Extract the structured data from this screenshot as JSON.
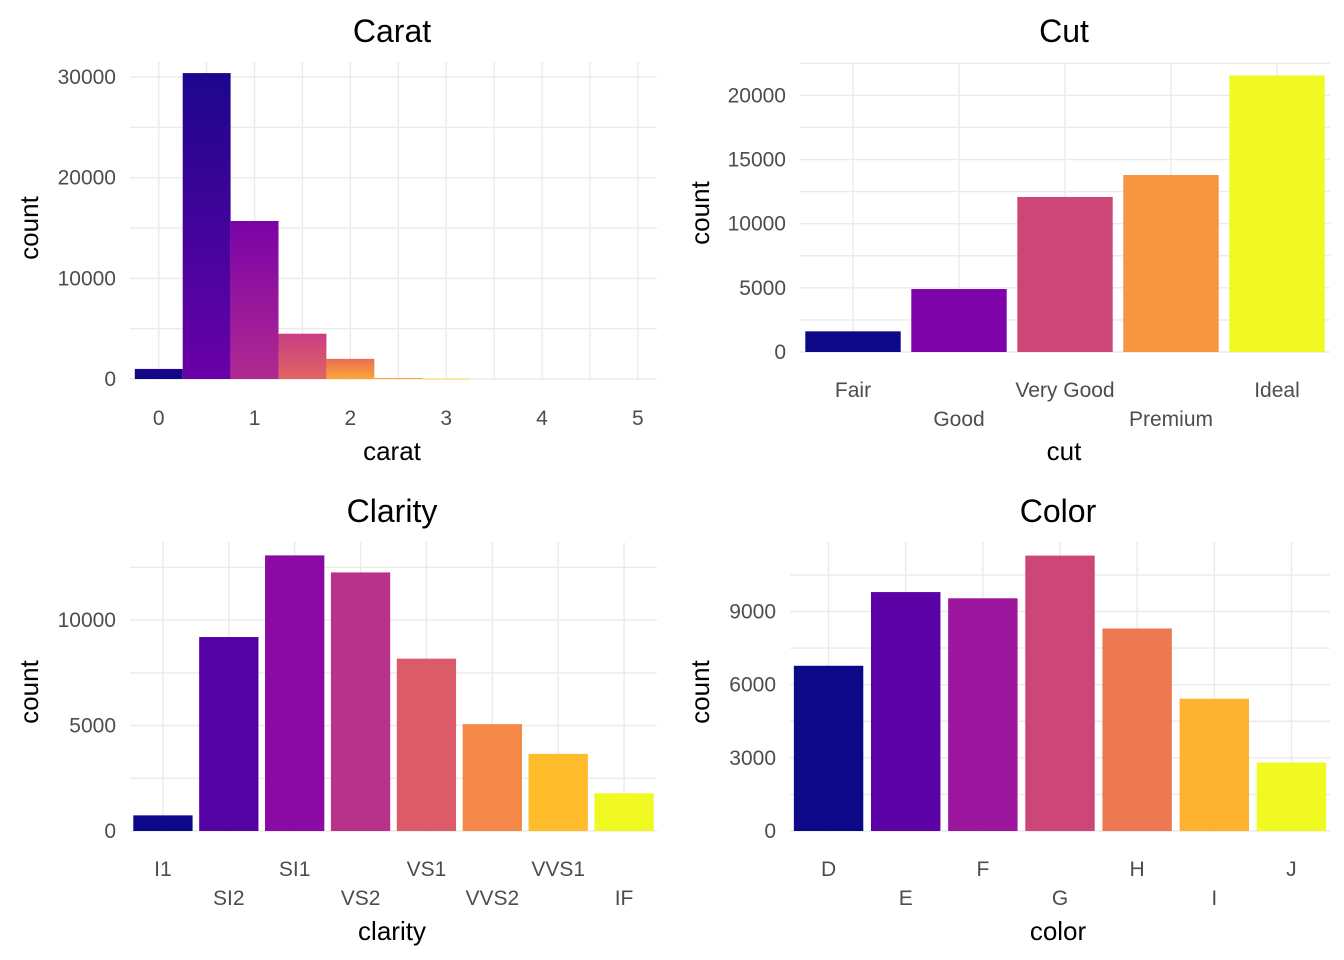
{
  "chart_data": [
    {
      "id": "carat",
      "type": "bar",
      "subtype": "histogram",
      "title": "Carat",
      "xlabel": "carat",
      "ylabel": "count",
      "x_ticks": [
        "0",
        "1",
        "2",
        "3",
        "4",
        "5"
      ],
      "y_ticks": [
        "0",
        "10000",
        "20000",
        "30000"
      ],
      "xlim": [
        -0.3,
        5.2
      ],
      "ylim": [
        0,
        31500
      ],
      "grid": true,
      "bins": [
        {
          "x0": -0.25,
          "x1": 0.25,
          "value": 1000,
          "color_from": "#0d0887",
          "color_to": "#1a068c"
        },
        {
          "x0": 0.25,
          "x1": 0.75,
          "value": 30400,
          "color_from": "#6a00a8",
          "color_to": "#1c068d"
        },
        {
          "x0": 0.75,
          "x1": 1.25,
          "value": 15700,
          "color_from": "#b12a90",
          "color_to": "#7a02a8"
        },
        {
          "x0": 1.25,
          "x1": 1.75,
          "value": 4500,
          "color_from": "#e16462",
          "color_to": "#c73e83"
        },
        {
          "x0": 1.75,
          "x1": 2.25,
          "value": 2000,
          "color_from": "#fca636",
          "color_to": "#ea6d58"
        },
        {
          "x0": 2.25,
          "x1": 2.75,
          "value": 100,
          "color_from": "#fdb92f",
          "color_to": "#fb9b38"
        },
        {
          "x0": 2.75,
          "x1": 3.25,
          "value": 30,
          "color_from": "#f0f921",
          "color_to": "#fdc328"
        }
      ]
    },
    {
      "id": "cut",
      "type": "bar",
      "title": "Cut",
      "xlabel": "cut",
      "ylabel": "count",
      "categories": [
        "Fair",
        "Good",
        "Very Good",
        "Premium",
        "Ideal"
      ],
      "values": [
        1610,
        4906,
        12082,
        13791,
        21551
      ],
      "colors": [
        "#0d0887",
        "#7e03a8",
        "#cc4778",
        "#f89540",
        "#f0f921"
      ],
      "y_ticks": [
        "0",
        "5000",
        "10000",
        "15000",
        "20000"
      ],
      "ylim": [
        0,
        22600
      ],
      "grid": true
    },
    {
      "id": "clarity",
      "type": "bar",
      "title": "Clarity",
      "xlabel": "clarity",
      "ylabel": "count",
      "categories": [
        "I1",
        "SI2",
        "SI1",
        "VS2",
        "VS1",
        "VVS2",
        "VVS1",
        "IF"
      ],
      "values": [
        741,
        9194,
        13065,
        12258,
        8171,
        5066,
        3655,
        1790
      ],
      "colors": [
        "#0d0887",
        "#5402a3",
        "#8b0aa5",
        "#b93289",
        "#db5c68",
        "#f48849",
        "#febc2a",
        "#f0f921"
      ],
      "y_ticks": [
        "0",
        "5000",
        "10000"
      ],
      "ylim": [
        0,
        13700
      ],
      "grid": true
    },
    {
      "id": "color",
      "type": "bar",
      "title": "Color",
      "xlabel": "color",
      "ylabel": "count",
      "categories": [
        "D",
        "E",
        "F",
        "G",
        "H",
        "I",
        "J"
      ],
      "values": [
        6775,
        9797,
        9542,
        11292,
        8304,
        5422,
        2808
      ],
      "colors": [
        "#0d0887",
        "#5c01a6",
        "#9c179e",
        "#cc4778",
        "#ed7953",
        "#fdb32f",
        "#f0f921"
      ],
      "y_ticks": [
        "0",
        "3000",
        "6000",
        "9000"
      ],
      "ylim": [
        0,
        11850
      ],
      "grid": true
    }
  ]
}
